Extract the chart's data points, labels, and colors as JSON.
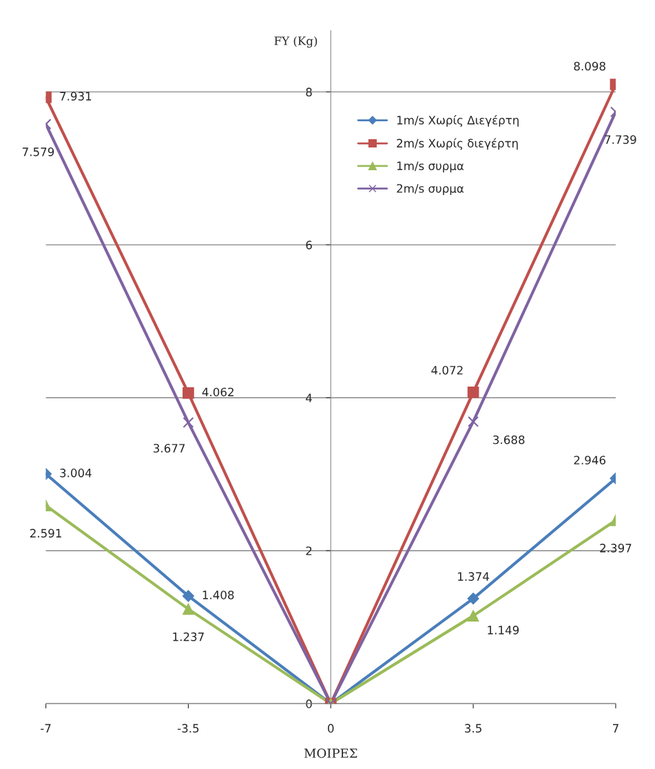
{
  "chart_data": {
    "type": "line",
    "xlabel": "ΜΟΙΡΕΣ",
    "ylabel": "FY (Kg)",
    "x": [
      -7,
      -3.5,
      0,
      3.5,
      7
    ],
    "xlim": [
      -7,
      7
    ],
    "xticks": [
      -7,
      -3.5,
      0,
      3.5,
      7
    ],
    "ylim": [
      0,
      8.8
    ],
    "yticks": [
      0,
      2,
      4,
      6,
      8
    ],
    "grid": "y",
    "legend": "top right",
    "series": [
      {
        "name": "1m/s Χωρίς Διεγέρτη",
        "color": "#4a7ebb",
        "marker": "diamond",
        "values": [
          3.004,
          1.408,
          0,
          1.374,
          2.946
        ],
        "value_labels": [
          "3.004",
          "1.408",
          null,
          "1.374",
          "2.946"
        ]
      },
      {
        "name": "2m/s Χωρίς διεγέρτη",
        "color": "#c0504d",
        "marker": "square",
        "values": [
          7.931,
          4.062,
          0,
          4.072,
          8.098
        ],
        "value_labels": [
          "7.931",
          "4.062",
          null,
          "4.072",
          "8.098"
        ]
      },
      {
        "name": "1m/s συρμα",
        "color": "#9bbb59",
        "marker": "triangle",
        "values": [
          2.591,
          1.237,
          0,
          1.149,
          2.397
        ],
        "value_labels": [
          "2.591",
          "1.237",
          null,
          "1.149",
          "2.397"
        ]
      },
      {
        "name": "2m/s συρμα",
        "color": "#7f63a2",
        "marker": "cross",
        "values": [
          7.579,
          3.677,
          0,
          3.688,
          7.739
        ],
        "value_labels": [
          "7.579",
          "3.677",
          null,
          "3.688",
          "7.739"
        ]
      }
    ]
  }
}
